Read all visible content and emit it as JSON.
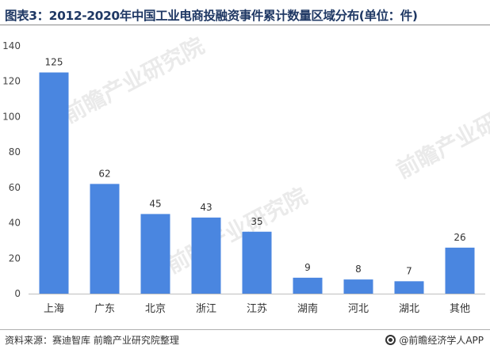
{
  "header": {
    "title": "图表3：2012-2020年中国工业电商投融资事件累计数量区域分布(单位：件)"
  },
  "footer": {
    "source": "资料来源：赛迪智库 前瞻产业研究院整理",
    "brand": "@前瞻经济学人APP"
  },
  "watermark": {
    "text": "前瞻产业研究院"
  },
  "chart_data": {
    "type": "bar",
    "categories": [
      "上海",
      "广东",
      "北京",
      "浙江",
      "江苏",
      "湖南",
      "河北",
      "湖北",
      "其他"
    ],
    "values": [
      125,
      62,
      45,
      43,
      35,
      9,
      8,
      7,
      26
    ],
    "ylim": [
      0,
      140
    ],
    "yticks": [
      0,
      20,
      40,
      60,
      80,
      100,
      120,
      140
    ],
    "bar_color": "#4a86e0",
    "grid": false,
    "data_labels": true
  }
}
